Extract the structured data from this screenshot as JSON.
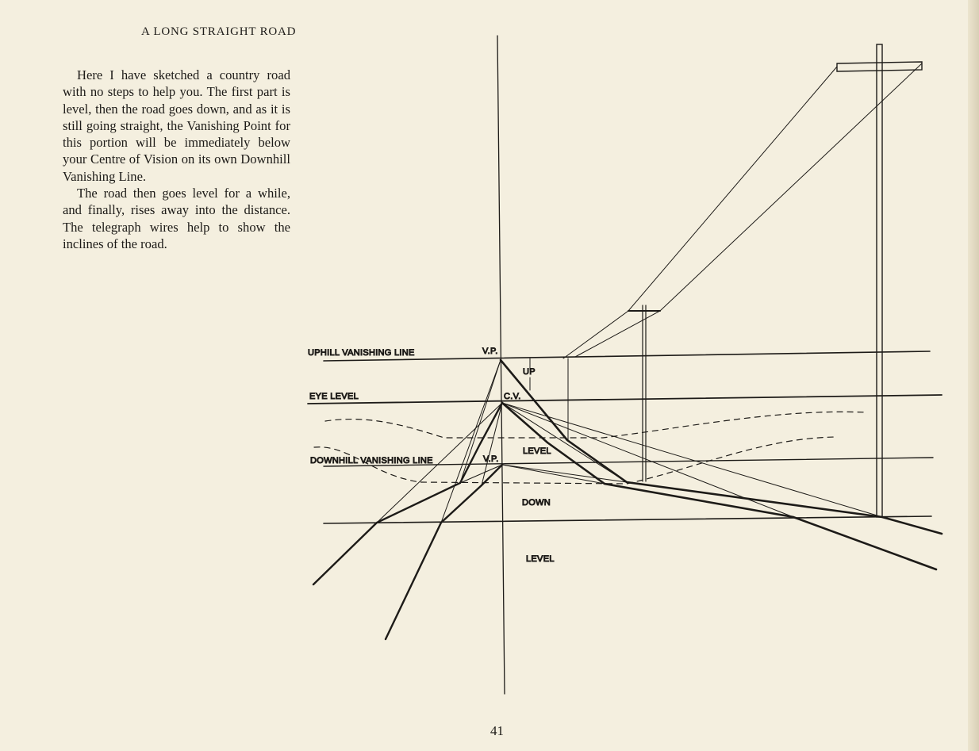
{
  "running_head": "A LONG STRAIGHT ROAD",
  "paragraphs": [
    "Here I have sketched a country road with no steps to help you. The first part is level, then the road goes down, and as it is still going straight, the Vanishing Point for this portion will be immediately below your Centre of Vision on its own Downhill Vanishing Line.",
    "The road then goes level for a while, and finally, rises away into the distance. The telegraph wires help to show the inclines of the road."
  ],
  "diagram": {
    "labels": {
      "uphill_line": "UPHILL VANISHING LINE",
      "eye_level": "EYE LEVEL",
      "downhill_line": "DOWNHILL VANISHING LINE",
      "vp_upper": "V.P.",
      "cv": "C.V.",
      "vp_lower": "V.P.",
      "up": "UP",
      "level_upper": "LEVEL",
      "down": "DOWN",
      "level_lower": "LEVEL"
    }
  },
  "page_number": "41"
}
